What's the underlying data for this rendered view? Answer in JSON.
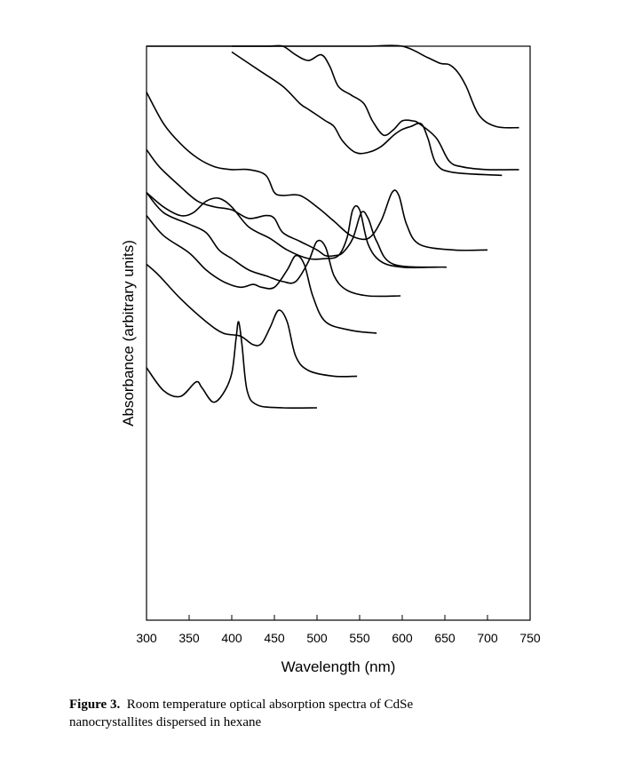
{
  "chart_data": {
    "type": "line",
    "title": "",
    "xlabel": "Wavelength (nm)",
    "ylabel": "Absorbance (arbitrary units)",
    "xlim": [
      300,
      750
    ],
    "x_ticks": [
      300,
      350,
      400,
      450,
      500,
      550,
      600,
      650,
      700,
      750
    ],
    "y_ticks": [],
    "grid": false,
    "legend": "none",
    "series": [
      {
        "start": 300,
        "end": 500,
        "points": [
          [
            300,
            0.44
          ],
          [
            320,
            0.4
          ],
          [
            340,
            0.39
          ],
          [
            358,
            0.415
          ],
          [
            365,
            0.405
          ],
          [
            378,
            0.38
          ],
          [
            390,
            0.395
          ],
          [
            400,
            0.43
          ],
          [
            405,
            0.49
          ],
          [
            408,
            0.52
          ],
          [
            412,
            0.48
          ],
          [
            418,
            0.4
          ],
          [
            430,
            0.375
          ],
          [
            460,
            0.37
          ],
          [
            500,
            0.37
          ]
        ]
      },
      {
        "start": 300,
        "end": 547,
        "points": [
          [
            300,
            0.62
          ],
          [
            315,
            0.6
          ],
          [
            340,
            0.56
          ],
          [
            370,
            0.52
          ],
          [
            390,
            0.5
          ],
          [
            410,
            0.495
          ],
          [
            425,
            0.48
          ],
          [
            435,
            0.482
          ],
          [
            445,
            0.51
          ],
          [
            455,
            0.54
          ],
          [
            465,
            0.52
          ],
          [
            475,
            0.46
          ],
          [
            490,
            0.435
          ],
          [
            520,
            0.425
          ],
          [
            547,
            0.425
          ]
        ]
      },
      {
        "start": 300,
        "end": 570,
        "points": [
          [
            300,
            0.705
          ],
          [
            320,
            0.67
          ],
          [
            350,
            0.64
          ],
          [
            370,
            0.61
          ],
          [
            390,
            0.59
          ],
          [
            410,
            0.58
          ],
          [
            425,
            0.585
          ],
          [
            435,
            0.58
          ],
          [
            450,
            0.58
          ],
          [
            465,
            0.61
          ],
          [
            475,
            0.635
          ],
          [
            485,
            0.62
          ],
          [
            495,
            0.565
          ],
          [
            510,
            0.52
          ],
          [
            540,
            0.505
          ],
          [
            570,
            0.5
          ]
        ]
      },
      {
        "start": 300,
        "end": 598,
        "points": [
          [
            300,
            0.745
          ],
          [
            320,
            0.71
          ],
          [
            350,
            0.69
          ],
          [
            370,
            0.675
          ],
          [
            385,
            0.645
          ],
          [
            400,
            0.63
          ],
          [
            420,
            0.61
          ],
          [
            440,
            0.6
          ],
          [
            460,
            0.59
          ],
          [
            475,
            0.59
          ],
          [
            490,
            0.625
          ],
          [
            500,
            0.66
          ],
          [
            510,
            0.65
          ],
          [
            520,
            0.6
          ],
          [
            535,
            0.575
          ],
          [
            560,
            0.565
          ],
          [
            598,
            0.565
          ]
        ]
      },
      {
        "start": 300,
        "end": 640,
        "points": [
          [
            300,
            0.745
          ],
          [
            320,
            0.72
          ],
          [
            340,
            0.705
          ],
          [
            355,
            0.71
          ],
          [
            370,
            0.73
          ],
          [
            385,
            0.735
          ],
          [
            400,
            0.72
          ],
          [
            420,
            0.685
          ],
          [
            445,
            0.665
          ],
          [
            465,
            0.645
          ],
          [
            490,
            0.63
          ],
          [
            510,
            0.63
          ],
          [
            525,
            0.635
          ],
          [
            535,
            0.665
          ],
          [
            542,
            0.715
          ],
          [
            550,
            0.715
          ],
          [
            560,
            0.655
          ],
          [
            575,
            0.625
          ],
          [
            600,
            0.615
          ],
          [
            640,
            0.615
          ]
        ]
      },
      {
        "start": 300,
        "end": 652,
        "points": [
          [
            300,
            0.82
          ],
          [
            315,
            0.79
          ],
          [
            340,
            0.755
          ],
          [
            360,
            0.73
          ],
          [
            380,
            0.72
          ],
          [
            400,
            0.715
          ],
          [
            420,
            0.7
          ],
          [
            440,
            0.705
          ],
          [
            450,
            0.7
          ],
          [
            460,
            0.675
          ],
          [
            480,
            0.66
          ],
          [
            500,
            0.645
          ],
          [
            510,
            0.635
          ],
          [
            520,
            0.635
          ],
          [
            530,
            0.64
          ],
          [
            542,
            0.665
          ],
          [
            552,
            0.71
          ],
          [
            560,
            0.7
          ],
          [
            570,
            0.66
          ],
          [
            590,
            0.62
          ],
          [
            652,
            0.615
          ]
        ]
      },
      {
        "start": 300,
        "end": 700,
        "points": [
          [
            300,
            0.92
          ],
          [
            320,
            0.865
          ],
          [
            340,
            0.83
          ],
          [
            360,
            0.805
          ],
          [
            380,
            0.79
          ],
          [
            400,
            0.785
          ],
          [
            420,
            0.785
          ],
          [
            440,
            0.775
          ],
          [
            450,
            0.745
          ],
          [
            460,
            0.74
          ],
          [
            480,
            0.74
          ],
          [
            500,
            0.72
          ],
          [
            520,
            0.695
          ],
          [
            540,
            0.67
          ],
          [
            560,
            0.665
          ],
          [
            575,
            0.695
          ],
          [
            588,
            0.745
          ],
          [
            596,
            0.74
          ],
          [
            605,
            0.69
          ],
          [
            620,
            0.655
          ],
          [
            660,
            0.645
          ],
          [
            700,
            0.645
          ]
        ]
      },
      {
        "start": 400,
        "end": 717,
        "points": [
          [
            400,
            0.99
          ],
          [
            430,
            0.96
          ],
          [
            460,
            0.93
          ],
          [
            480,
            0.9
          ],
          [
            490,
            0.89
          ],
          [
            500,
            0.88
          ],
          [
            510,
            0.87
          ],
          [
            520,
            0.86
          ],
          [
            530,
            0.835
          ],
          [
            545,
            0.815
          ],
          [
            560,
            0.815
          ],
          [
            575,
            0.825
          ],
          [
            590,
            0.845
          ],
          [
            600,
            0.855
          ],
          [
            610,
            0.86
          ],
          [
            622,
            0.865
          ],
          [
            630,
            0.84
          ],
          [
            640,
            0.795
          ],
          [
            660,
            0.78
          ],
          [
            717,
            0.775
          ]
        ]
      },
      {
        "start": 300,
        "end": 737,
        "points": [
          [
            300,
            1.45
          ],
          [
            320,
            1.38
          ],
          [
            340,
            1.3
          ],
          [
            360,
            1.23
          ],
          [
            380,
            1.17
          ],
          [
            400,
            1.09
          ],
          [
            420,
            1.05
          ],
          [
            445,
            1.04
          ],
          [
            460,
            1.015
          ],
          [
            475,
            0.985
          ],
          [
            490,
            0.975
          ],
          [
            505,
            0.985
          ],
          [
            515,
            0.965
          ],
          [
            525,
            0.93
          ],
          [
            540,
            0.915
          ],
          [
            555,
            0.9
          ],
          [
            565,
            0.87
          ],
          [
            578,
            0.845
          ],
          [
            590,
            0.855
          ],
          [
            600,
            0.87
          ],
          [
            612,
            0.87
          ],
          [
            620,
            0.865
          ],
          [
            640,
            0.84
          ],
          [
            655,
            0.8
          ],
          [
            670,
            0.79
          ],
          [
            700,
            0.785
          ],
          [
            737,
            0.785
          ]
        ]
      },
      {
        "start": 400,
        "end": 737,
        "points": [
          [
            400,
            1.45
          ],
          [
            430,
            1.34
          ],
          [
            460,
            1.25
          ],
          [
            490,
            1.19
          ],
          [
            520,
            1.13
          ],
          [
            560,
            1.07
          ],
          [
            600,
            1.015
          ],
          [
            630,
            0.98
          ],
          [
            645,
            0.97
          ],
          [
            655,
            0.968
          ],
          [
            665,
            0.955
          ],
          [
            675,
            0.93
          ],
          [
            690,
            0.88
          ],
          [
            710,
            0.86
          ],
          [
            737,
            0.858
          ]
        ]
      }
    ]
  },
  "caption": {
    "label": "Figure 3.",
    "line1": "Room temperature optical absorption spectra of CdSe",
    "line2": "nanocrystallites dispersed in hexane"
  }
}
